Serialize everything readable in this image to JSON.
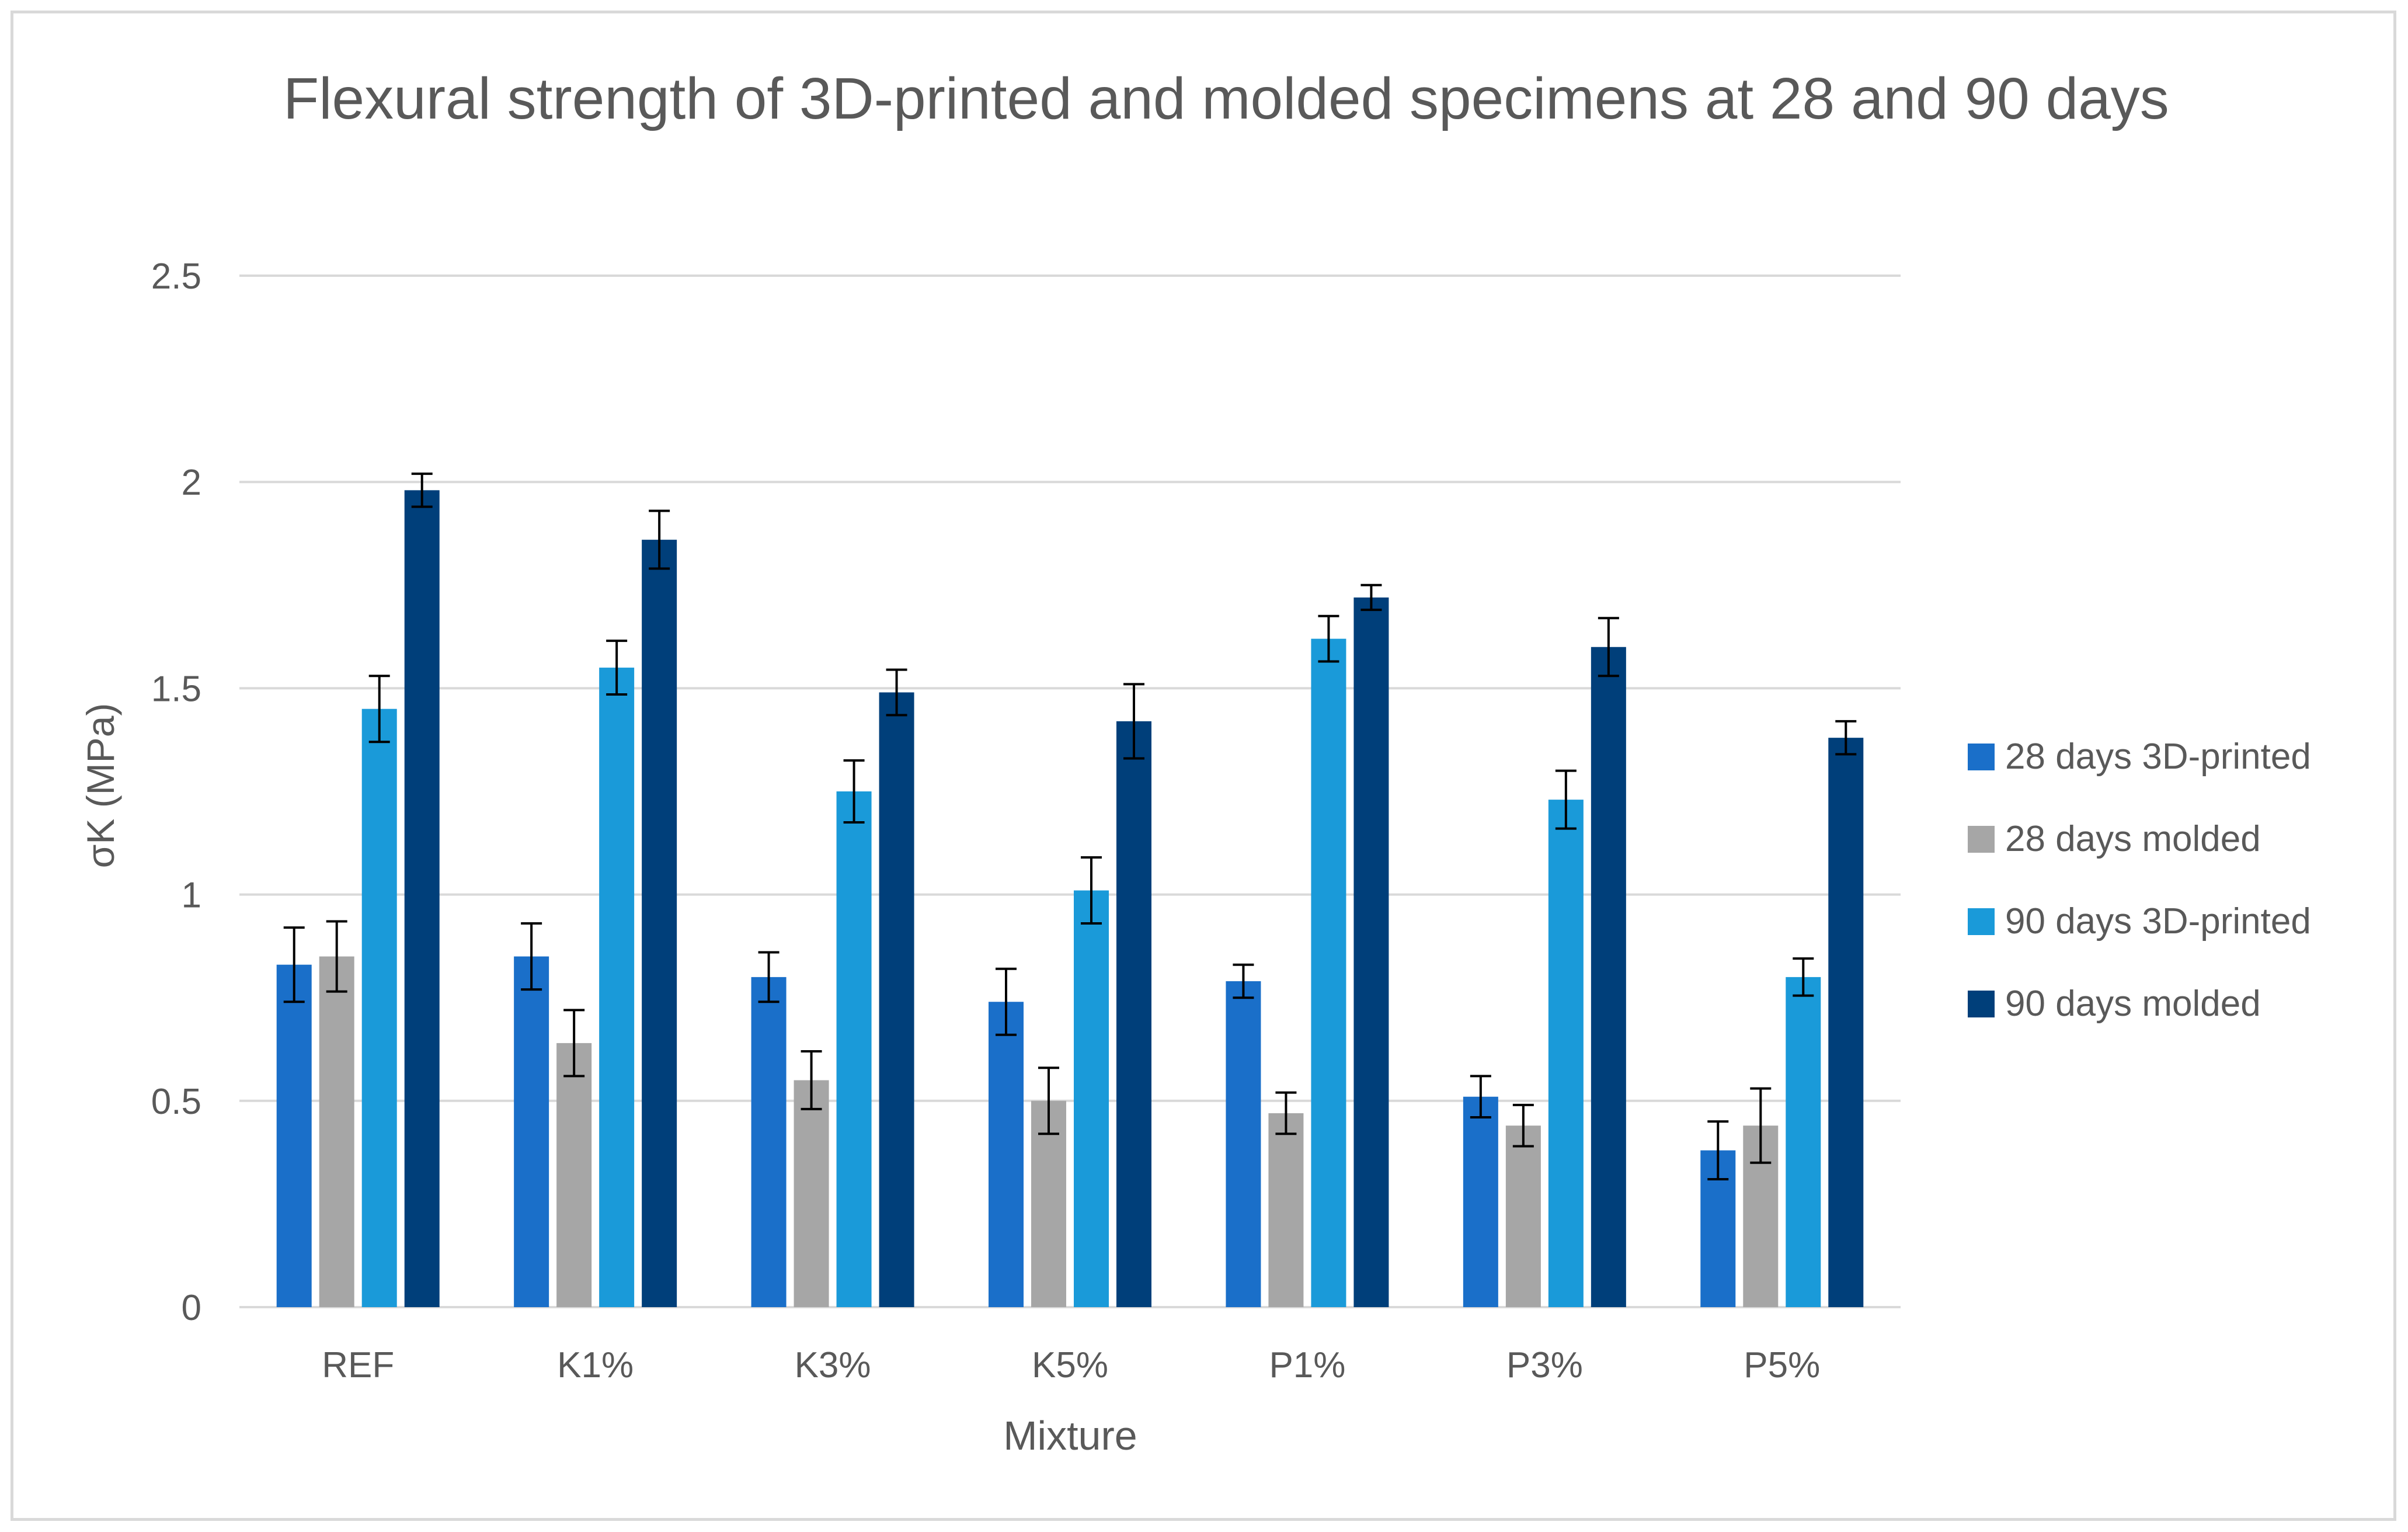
{
  "chart_data": {
    "type": "bar",
    "title": "Flexural strength of 3D-printed and molded specimens at 28 and 90 days",
    "xlabel": "Mixture",
    "ylabel": "σK (MPa)",
    "ylim": [
      0,
      2.5
    ],
    "yticks": [
      "0",
      "0.5",
      "1",
      "1.5",
      "2",
      "2.5"
    ],
    "grid": true,
    "legend_position": "right",
    "categories": [
      "REF",
      "K1%",
      "K3%",
      "K5%",
      "P1%",
      "P3%",
      "P5%"
    ],
    "series": [
      {
        "name": "28 days 3D-printed",
        "color": "#1a6fc9",
        "values": [
          0.83,
          0.85,
          0.8,
          0.74,
          0.79,
          0.51,
          0.38
        ],
        "errors": [
          0.09,
          0.08,
          0.06,
          0.08,
          0.04,
          0.05,
          0.07
        ]
      },
      {
        "name": "28 days molded",
        "color": "#a6a6a6",
        "values": [
          0.85,
          0.64,
          0.55,
          0.5,
          0.47,
          0.44,
          0.44
        ],
        "errors": [
          0.085,
          0.08,
          0.07,
          0.08,
          0.05,
          0.05,
          0.09
        ]
      },
      {
        "name": "90 days 3D-printed",
        "color": "#1a9ad9",
        "values": [
          1.45,
          1.55,
          1.25,
          1.01,
          1.62,
          1.23,
          0.8
        ],
        "errors": [
          0.08,
          0.065,
          0.075,
          0.08,
          0.055,
          0.07,
          0.045
        ]
      },
      {
        "name": "90 days molded",
        "color": "#003f7a",
        "values": [
          1.98,
          1.86,
          1.49,
          1.42,
          1.72,
          1.6,
          1.38
        ],
        "errors": [
          0.04,
          0.07,
          0.055,
          0.09,
          0.03,
          0.07,
          0.04
        ]
      }
    ]
  }
}
